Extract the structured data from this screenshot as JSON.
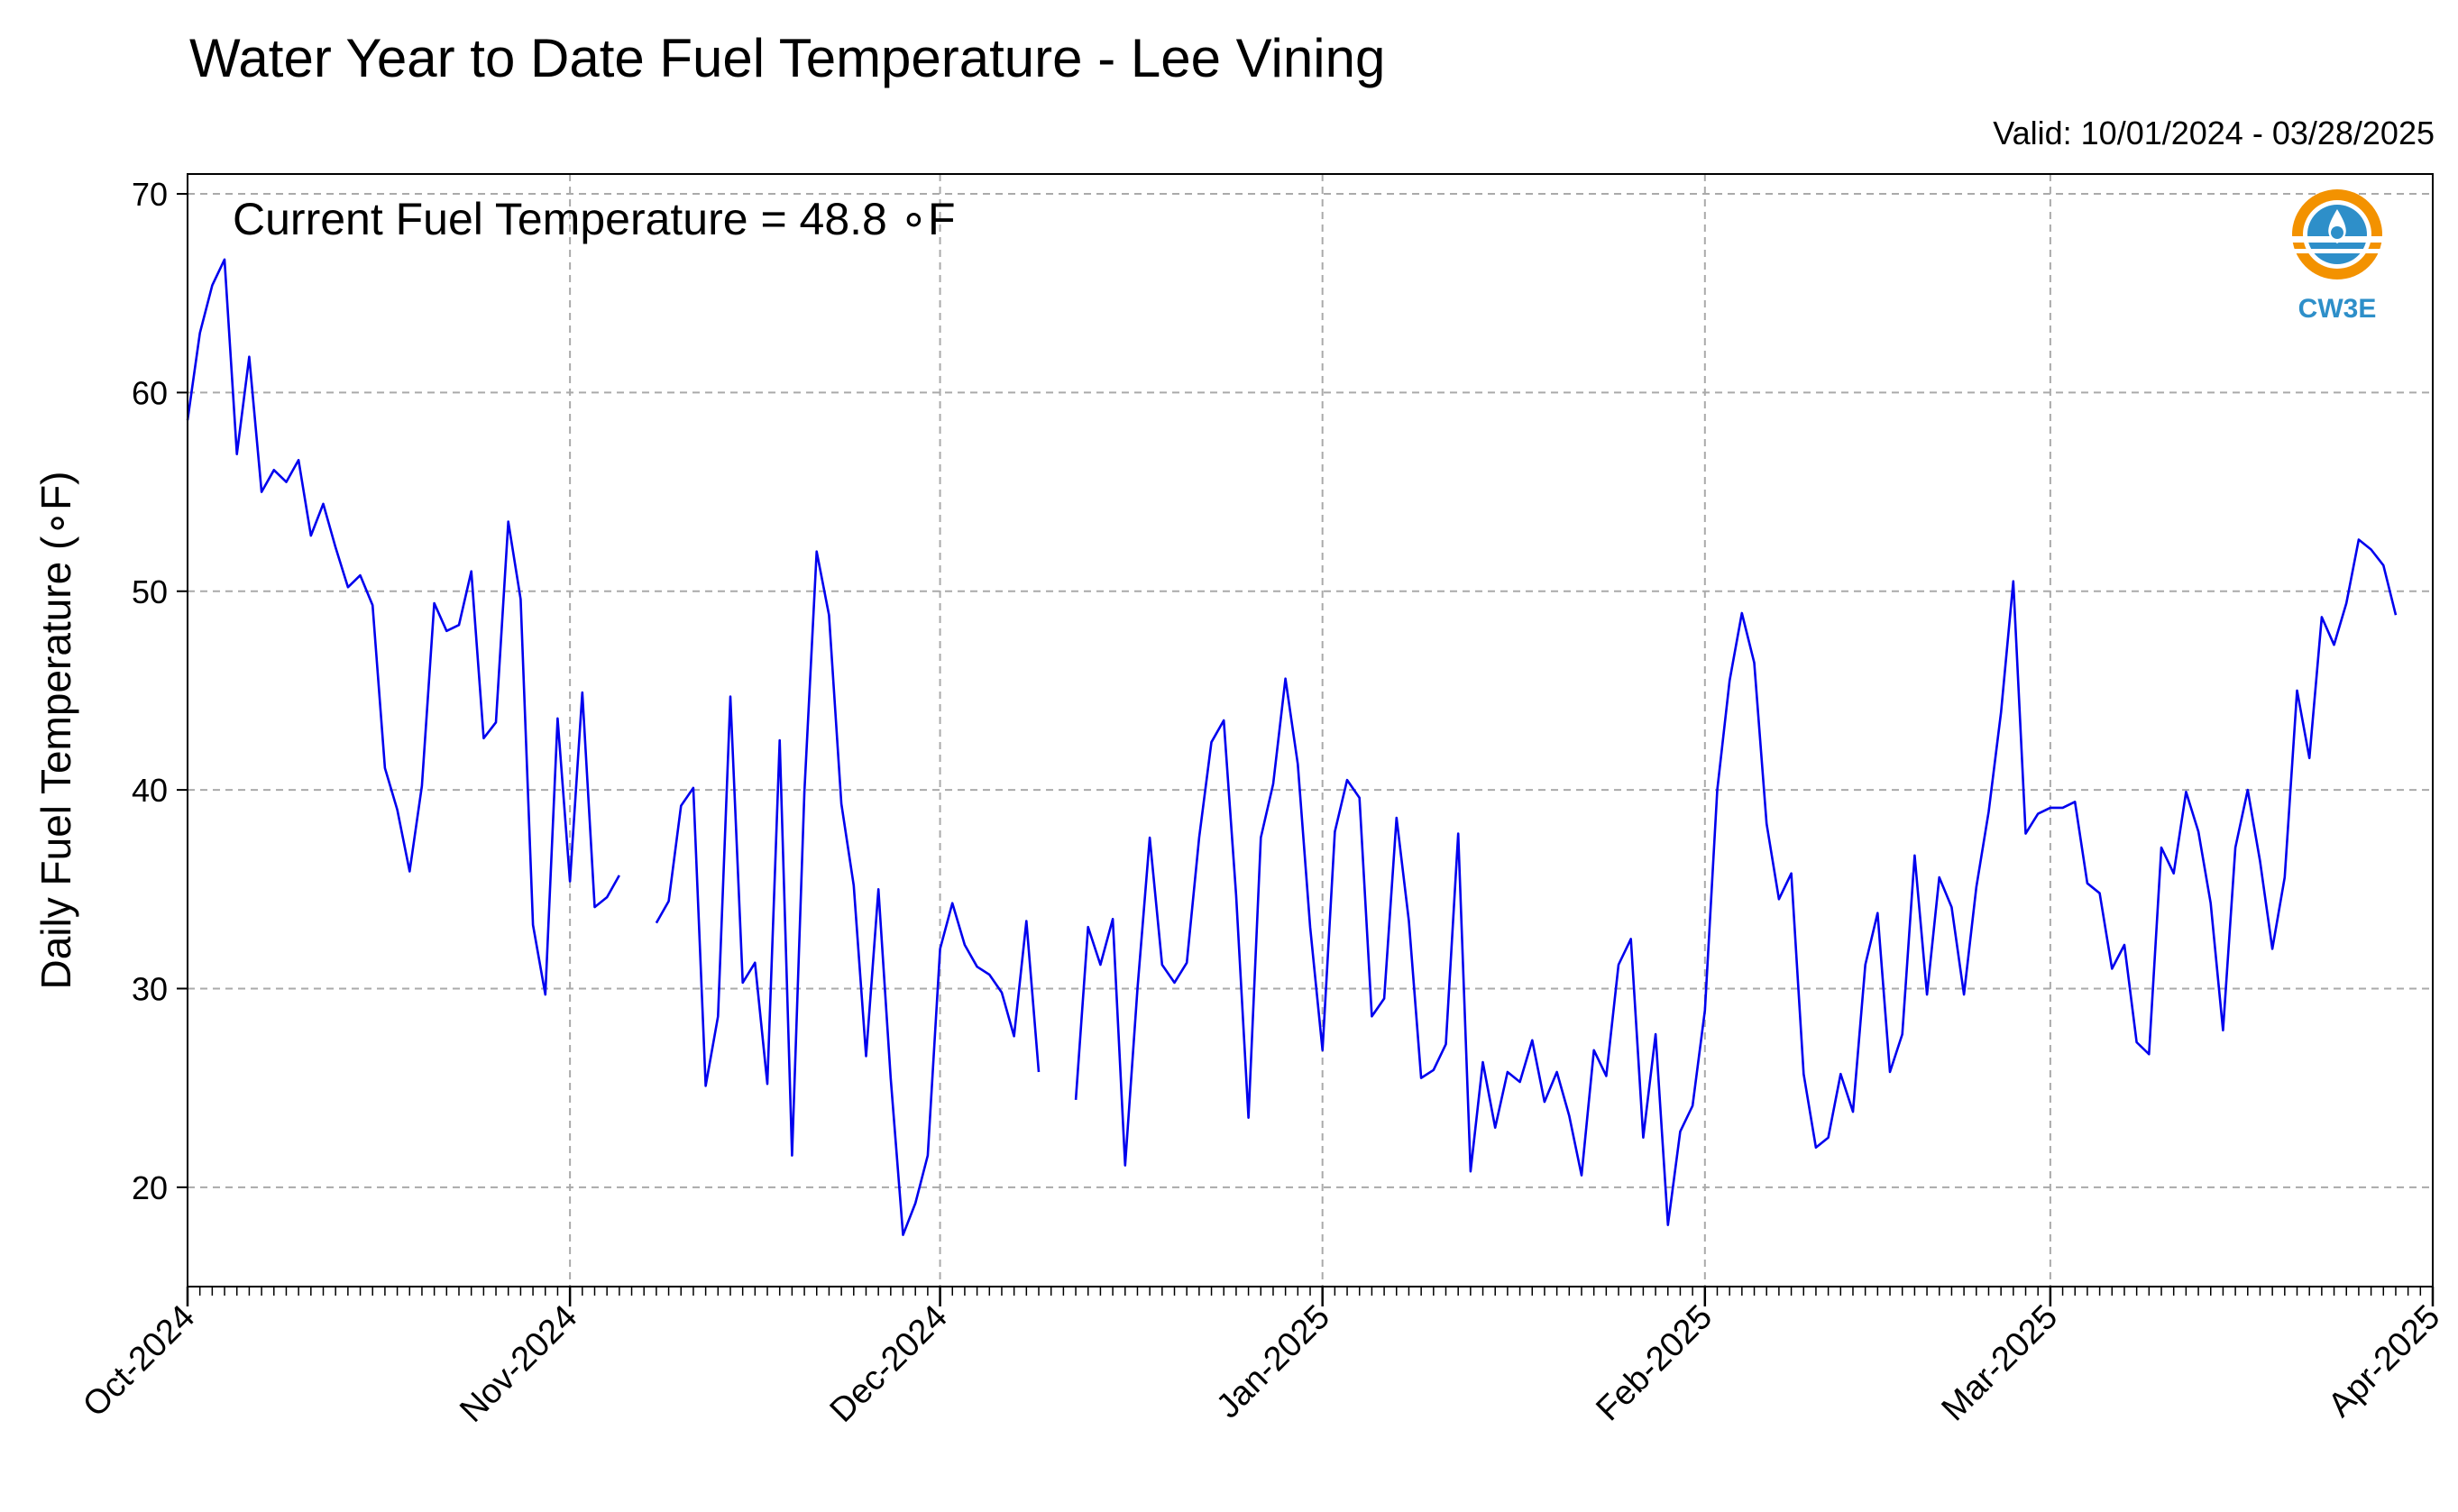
{
  "chart_data": {
    "type": "line",
    "title": "Water Year to Date Fuel Temperature - Lee Vining",
    "subtitle": "Valid: 10/01/2024 - 03/28/2025",
    "ylabel": "Daily Fuel Temperature (∘F)",
    "xlabel": "",
    "annotation": "Current Fuel Temperature = 48.8 ∘F",
    "ylim": [
      15,
      71
    ],
    "yticks": [
      20,
      30,
      40,
      50,
      60,
      70
    ],
    "xlim": [
      "2024-10-01",
      "2025-04-01"
    ],
    "xticks": [
      {
        "date": "2024-10-01",
        "label": "Oct-2024"
      },
      {
        "date": "2024-11-01",
        "label": "Nov-2024"
      },
      {
        "date": "2024-12-01",
        "label": "Dec-2024"
      },
      {
        "date": "2025-01-01",
        "label": "Jan-2025"
      },
      {
        "date": "2025-02-01",
        "label": "Feb-2025"
      },
      {
        "date": "2025-03-01",
        "label": "Mar-2025"
      },
      {
        "date": "2025-04-01",
        "label": "Apr-2025"
      }
    ],
    "grid": true,
    "line_color": "#0000ee",
    "logo_text": "CW3E",
    "series": [
      {
        "start": "2024-10-01",
        "values": [
          58.6,
          63.0,
          65.4,
          66.7,
          56.9,
          61.8,
          55.0,
          56.1,
          55.5,
          56.6,
          52.8,
          54.4,
          52.2,
          50.2,
          50.8,
          49.3,
          41.1,
          39.0,
          35.9,
          40.2,
          49.4,
          48.0,
          48.3,
          51.0,
          42.6,
          43.4,
          53.5,
          49.6,
          33.2,
          29.7,
          43.6,
          35.4,
          44.9,
          34.1,
          34.6,
          35.7,
          null,
          null,
          33.3,
          34.4,
          39.2,
          40.1,
          25.1,
          28.6,
          44.7,
          30.3,
          31.3,
          25.2,
          42.5,
          21.6,
          39.9,
          52.0,
          48.8,
          39.3,
          35.2,
          26.6,
          35.0,
          25.5,
          17.6,
          19.2,
          21.6,
          32.0,
          34.3,
          32.2,
          31.1,
          30.7,
          29.8,
          27.6,
          33.4,
          25.8,
          null,
          null,
          24.4,
          33.1,
          31.2,
          33.5,
          21.1,
          30.0,
          37.6,
          31.2,
          30.3,
          31.3,
          37.6,
          42.4,
          43.5,
          34.7,
          23.5,
          37.6,
          40.3,
          45.6,
          41.3,
          33.1,
          26.9,
          37.9,
          40.5,
          39.6,
          28.6,
          29.5,
          38.6,
          33.4,
          25.5,
          25.9,
          27.2,
          37.8,
          20.8,
          26.3,
          23.0,
          25.8,
          25.3,
          27.4,
          24.3,
          25.8,
          23.6,
          20.6,
          26.9,
          25.6,
          31.2,
          32.5,
          22.5,
          27.7,
          18.1,
          22.8,
          24.1,
          28.9,
          40.0,
          45.5,
          48.9,
          46.4,
          38.3,
          34.5,
          35.8,
          25.7,
          22.0,
          22.5,
          25.7,
          23.8,
          31.2,
          33.8,
          25.8,
          27.7,
          36.7,
          29.7,
          35.6,
          34.1,
          29.7,
          35.1,
          38.9,
          43.9,
          50.5,
          37.8,
          38.8,
          39.1,
          39.1,
          39.4,
          35.3,
          34.8,
          31.0,
          32.2,
          27.3,
          26.7,
          37.1,
          35.8,
          39.9,
          37.9,
          34.3,
          27.9,
          37.1,
          40.0,
          36.4,
          32.0,
          35.6,
          45.0,
          41.6,
          48.7,
          47.3,
          49.4,
          52.6,
          52.1,
          51.3,
          48.8
        ]
      }
    ]
  }
}
